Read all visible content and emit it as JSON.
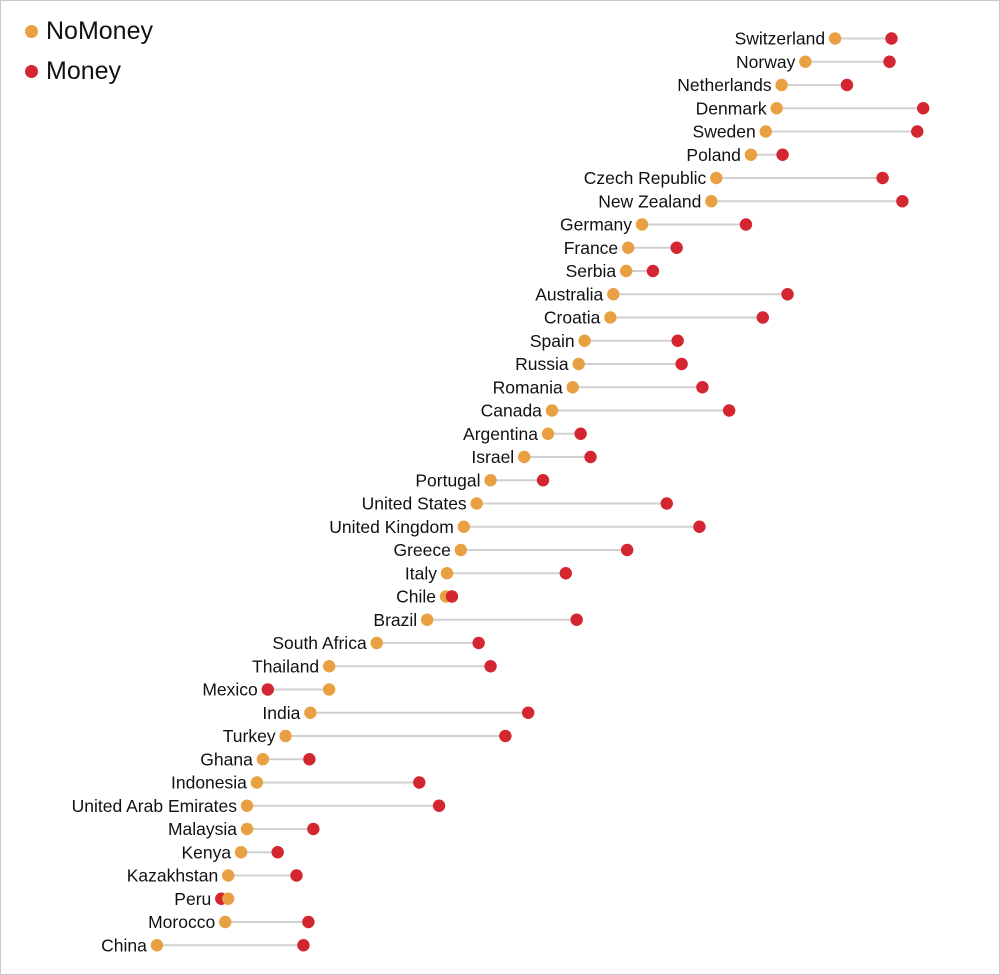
{
  "chart_data": {
    "type": "dumbbell",
    "title": "",
    "xlabel": "",
    "ylabel": "",
    "grid": false,
    "legend_placement": "top-left",
    "series": [
      {
        "name": "NoMoney",
        "color": "#E8A043"
      },
      {
        "name": "Money",
        "color": "#D42630"
      }
    ],
    "x_range": [
      10,
      95
    ],
    "rows": [
      {
        "country": "Switzerland",
        "nomoney": 84.3,
        "money": 90.0
      },
      {
        "country": "Norway",
        "nomoney": 81.3,
        "money": 89.8
      },
      {
        "country": "Netherlands",
        "nomoney": 78.9,
        "money": 85.5
      },
      {
        "country": "Denmark",
        "nomoney": 78.4,
        "money": 93.2
      },
      {
        "country": "Sweden",
        "nomoney": 77.3,
        "money": 92.6
      },
      {
        "country": "Poland",
        "nomoney": 75.8,
        "money": 79.0
      },
      {
        "country": "Czech Republic",
        "nomoney": 72.3,
        "money": 89.1
      },
      {
        "country": "New Zealand",
        "nomoney": 71.8,
        "money": 91.1
      },
      {
        "country": "Germany",
        "nomoney": 64.8,
        "money": 75.3
      },
      {
        "country": "France",
        "nomoney": 63.4,
        "money": 68.3
      },
      {
        "country": "Serbia",
        "nomoney": 63.2,
        "money": 65.9
      },
      {
        "country": "Australia",
        "nomoney": 61.9,
        "money": 79.5
      },
      {
        "country": "Croatia",
        "nomoney": 61.6,
        "money": 77.0
      },
      {
        "country": "Spain",
        "nomoney": 59.0,
        "money": 68.4
      },
      {
        "country": "Russia",
        "nomoney": 58.4,
        "money": 68.8
      },
      {
        "country": "Romania",
        "nomoney": 57.8,
        "money": 70.9
      },
      {
        "country": "Canada",
        "nomoney": 55.7,
        "money": 73.6
      },
      {
        "country": "Argentina",
        "nomoney": 55.3,
        "money": 58.6
      },
      {
        "country": "Israel",
        "nomoney": 52.9,
        "money": 59.6
      },
      {
        "country": "Portugal",
        "nomoney": 49.5,
        "money": 54.8
      },
      {
        "country": "United States",
        "nomoney": 48.1,
        "money": 67.3
      },
      {
        "country": "United Kingdom",
        "nomoney": 46.8,
        "money": 70.6
      },
      {
        "country": "Greece",
        "nomoney": 46.5,
        "money": 63.3
      },
      {
        "country": "Italy",
        "nomoney": 45.1,
        "money": 57.1
      },
      {
        "country": "Chile",
        "nomoney": 45.0,
        "money": 45.6
      },
      {
        "country": "Brazil",
        "nomoney": 43.1,
        "money": 58.2
      },
      {
        "country": "South Africa",
        "nomoney": 38.0,
        "money": 48.3
      },
      {
        "country": "Thailand",
        "nomoney": 33.2,
        "money": 49.5
      },
      {
        "country": "Mexico",
        "nomoney": 33.2,
        "money": 27.0
      },
      {
        "country": "India",
        "nomoney": 31.3,
        "money": 53.3
      },
      {
        "country": "Turkey",
        "nomoney": 28.8,
        "money": 51.0
      },
      {
        "country": "Ghana",
        "nomoney": 26.5,
        "money": 31.2
      },
      {
        "country": "Indonesia",
        "nomoney": 25.9,
        "money": 42.3
      },
      {
        "country": "United Arab Emirates",
        "nomoney": 24.9,
        "money": 44.3
      },
      {
        "country": "Malaysia",
        "nomoney": 24.9,
        "money": 31.6
      },
      {
        "country": "Kenya",
        "nomoney": 24.3,
        "money": 28.0
      },
      {
        "country": "Kazakhstan",
        "nomoney": 23.0,
        "money": 29.9
      },
      {
        "country": "Peru",
        "nomoney": 23.0,
        "money": 22.3
      },
      {
        "country": "Morocco",
        "nomoney": 22.7,
        "money": 31.1
      },
      {
        "country": "China",
        "nomoney": 15.8,
        "money": 30.6
      }
    ]
  }
}
